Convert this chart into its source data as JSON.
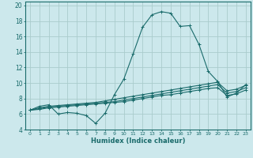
{
  "xlabel": "Humidex (Indice chaleur)",
  "ylabel": "",
  "bg_color": "#cce8ec",
  "grid_color": "#aacccc",
  "line_color": "#1a6b6b",
  "xlim": [
    -0.5,
    23.5
  ],
  "ylim": [
    4,
    20.5
  ],
  "xticks": [
    0,
    1,
    2,
    3,
    4,
    5,
    6,
    7,
    8,
    9,
    10,
    11,
    12,
    13,
    14,
    15,
    16,
    17,
    18,
    19,
    20,
    21,
    22,
    23
  ],
  "yticks": [
    4,
    6,
    8,
    10,
    12,
    14,
    16,
    18,
    20
  ],
  "series": [
    {
      "x": [
        0,
        1,
        2,
        3,
        4,
        5,
        6,
        7,
        8,
        9,
        10,
        11,
        12,
        13,
        14,
        15,
        16,
        17,
        18,
        19,
        20,
        21,
        22,
        23
      ],
      "y": [
        6.5,
        7.0,
        7.2,
        6.0,
        6.2,
        6.1,
        5.8,
        4.8,
        6.1,
        8.5,
        10.5,
        13.8,
        17.2,
        18.8,
        19.2,
        19.0,
        17.3,
        17.4,
        15.0,
        11.5,
        10.2,
        8.2,
        8.7,
        9.8
      ]
    },
    {
      "x": [
        0,
        1,
        2,
        3,
        4,
        5,
        6,
        7,
        8,
        9,
        10,
        11,
        12,
        13,
        14,
        15,
        16,
        17,
        18,
        19,
        20,
        21,
        22,
        23
      ],
      "y": [
        6.5,
        6.8,
        7.0,
        7.1,
        7.2,
        7.3,
        7.4,
        7.5,
        7.7,
        7.9,
        8.1,
        8.3,
        8.5,
        8.7,
        8.9,
        9.1,
        9.3,
        9.5,
        9.7,
        9.9,
        10.1,
        9.0,
        9.2,
        9.7
      ]
    },
    {
      "x": [
        0,
        1,
        2,
        3,
        4,
        5,
        6,
        7,
        8,
        9,
        10,
        11,
        12,
        13,
        14,
        15,
        16,
        17,
        18,
        19,
        20,
        21,
        22,
        23
      ],
      "y": [
        6.5,
        6.7,
        6.9,
        7.0,
        7.1,
        7.2,
        7.3,
        7.4,
        7.5,
        7.6,
        7.8,
        8.0,
        8.2,
        8.4,
        8.6,
        8.8,
        9.0,
        9.2,
        9.4,
        9.6,
        9.8,
        8.7,
        8.9,
        9.4
      ]
    },
    {
      "x": [
        0,
        1,
        2,
        3,
        4,
        5,
        6,
        7,
        8,
        9,
        10,
        11,
        12,
        13,
        14,
        15,
        16,
        17,
        18,
        19,
        20,
        21,
        22,
        23
      ],
      "y": [
        6.5,
        6.6,
        6.8,
        6.9,
        7.0,
        7.1,
        7.2,
        7.3,
        7.4,
        7.5,
        7.6,
        7.8,
        8.0,
        8.2,
        8.4,
        8.5,
        8.7,
        8.9,
        9.1,
        9.3,
        9.4,
        8.4,
        8.6,
        9.1
      ]
    }
  ]
}
